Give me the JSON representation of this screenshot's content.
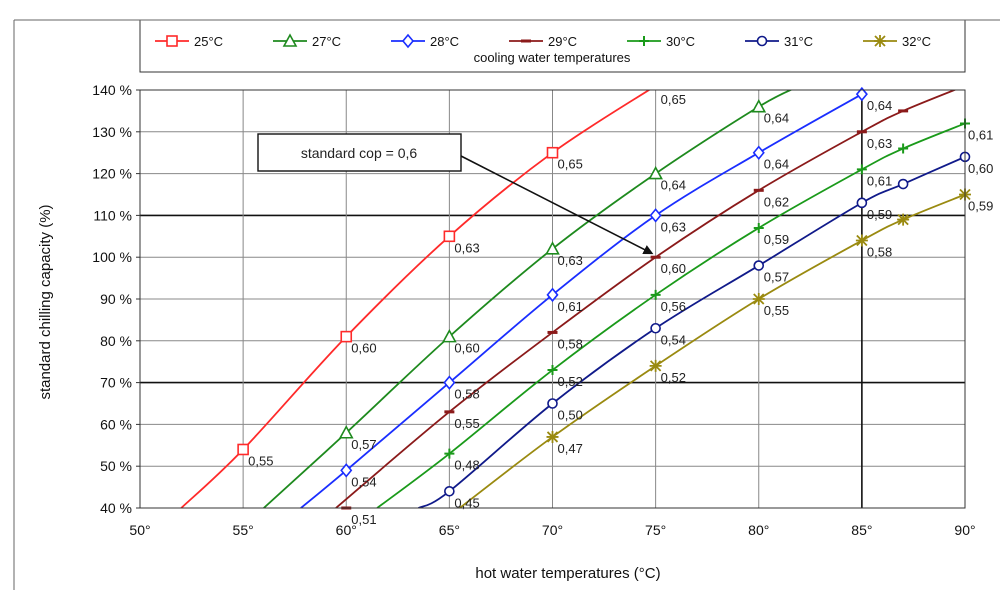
{
  "chart_data": {
    "type": "line",
    "xlabel": "hot water temperatures (°C)",
    "ylabel": "standard chilling capacity (%)",
    "xlim": [
      50,
      90
    ],
    "ylim": [
      40,
      140
    ],
    "x_ticks": [
      {
        "value": 50,
        "label": "50°"
      },
      {
        "value": 55,
        "label": "55°"
      },
      {
        "value": 60,
        "label": "60°"
      },
      {
        "value": 65,
        "label": "65°"
      },
      {
        "value": 70,
        "label": "70°"
      },
      {
        "value": 75,
        "label": "75°"
      },
      {
        "value": 80,
        "label": "80°"
      },
      {
        "value": 85,
        "label": "85°"
      },
      {
        "value": 90,
        "label": "90°"
      }
    ],
    "y_ticks": [
      {
        "value": 40,
        "label": "40 %"
      },
      {
        "value": 50,
        "label": "50 %"
      },
      {
        "value": 60,
        "label": "60 %"
      },
      {
        "value": 70,
        "label": "70 %"
      },
      {
        "value": 80,
        "label": "80 %"
      },
      {
        "value": 90,
        "label": "90 %"
      },
      {
        "value": 100,
        "label": "100 %"
      },
      {
        "value": 110,
        "label": "110 %"
      },
      {
        "value": 120,
        "label": "120 %"
      },
      {
        "value": 130,
        "label": "130 %"
      },
      {
        "value": 140,
        "label": "140 %"
      }
    ],
    "grid": true,
    "bold_gridlines": {
      "x": [
        85
      ],
      "y": [
        70,
        110
      ]
    },
    "legend": {
      "placement": "top",
      "caption": "cooling water temperatures"
    },
    "annotation": {
      "text": "standard cop = 0,6",
      "arrow_to": {
        "x": 75,
        "y": 100
      }
    },
    "series": [
      {
        "name": "25°C",
        "color": "#ff2a2a",
        "marker": "square",
        "curve": [
          [
            52,
            40
          ],
          [
            55,
            54
          ],
          [
            60,
            81
          ],
          [
            65,
            105
          ],
          [
            70,
            125
          ],
          [
            75,
            141
          ]
        ],
        "points": [
          {
            "x": 55,
            "y": 54,
            "cop": "0,55"
          },
          {
            "x": 60,
            "y": 81,
            "cop": "0,60"
          },
          {
            "x": 65,
            "y": 105,
            "cop": "0,63"
          },
          {
            "x": 70,
            "y": 125,
            "cop": "0,65"
          },
          {
            "x": 75,
            "y": 141,
            "cop": "0,65"
          }
        ]
      },
      {
        "name": "27°C",
        "color": "#1e8a1e",
        "marker": "triangle",
        "curve": [
          [
            56,
            40
          ],
          [
            60,
            58
          ],
          [
            65,
            81
          ],
          [
            70,
            102
          ],
          [
            75,
            120
          ],
          [
            80,
            136
          ],
          [
            82,
            141
          ]
        ],
        "points": [
          {
            "x": 60,
            "y": 58,
            "cop": "0,57"
          },
          {
            "x": 65,
            "y": 81,
            "cop": "0,60"
          },
          {
            "x": 70,
            "y": 102,
            "cop": "0,63"
          },
          {
            "x": 75,
            "y": 120,
            "cop": "0,64"
          },
          {
            "x": 80,
            "y": 136,
            "cop": "0,64"
          }
        ]
      },
      {
        "name": "28°C",
        "color": "#1a2eff",
        "marker": "diamond",
        "curve": [
          [
            57.8,
            40
          ],
          [
            60,
            49
          ],
          [
            65,
            70
          ],
          [
            70,
            91
          ],
          [
            75,
            110
          ],
          [
            80,
            125
          ],
          [
            85,
            139
          ]
        ],
        "points": [
          {
            "x": 60,
            "y": 49,
            "cop": "0,54"
          },
          {
            "x": 65,
            "y": 70,
            "cop": "0,58"
          },
          {
            "x": 70,
            "y": 91,
            "cop": "0,61"
          },
          {
            "x": 75,
            "y": 110,
            "cop": "0,63"
          },
          {
            "x": 80,
            "y": 125,
            "cop": "0,64"
          },
          {
            "x": 85,
            "y": 139,
            "cop": "0,64"
          }
        ]
      },
      {
        "name": "29°C",
        "color": "#8b1a1a",
        "marker": "dash",
        "curve": [
          [
            59.5,
            40
          ],
          [
            65,
            63
          ],
          [
            70,
            82
          ],
          [
            75,
            100
          ],
          [
            80,
            116
          ],
          [
            85,
            130
          ],
          [
            87,
            135
          ],
          [
            90,
            141
          ]
        ],
        "points": [
          {
            "x": 60,
            "y": 40,
            "cop": "0,51"
          },
          {
            "x": 65,
            "y": 63,
            "cop": "0,55"
          },
          {
            "x": 70,
            "y": 82,
            "cop": "0,58"
          },
          {
            "x": 75,
            "y": 100,
            "cop": "0,60"
          },
          {
            "x": 80,
            "y": 116,
            "cop": "0,62"
          },
          {
            "x": 85,
            "y": 130,
            "cop": "0,63"
          },
          {
            "x": 87,
            "y": 135,
            "cop": ""
          }
        ]
      },
      {
        "name": "30°C",
        "color": "#1a9a1a",
        "marker": "plus",
        "curve": [
          [
            61.5,
            40
          ],
          [
            65,
            53
          ],
          [
            70,
            73
          ],
          [
            75,
            91
          ],
          [
            80,
            107
          ],
          [
            85,
            121
          ],
          [
            87,
            126
          ],
          [
            90,
            132
          ]
        ],
        "points": [
          {
            "x": 65,
            "y": 53,
            "cop": "0,48"
          },
          {
            "x": 70,
            "y": 73,
            "cop": "0,52"
          },
          {
            "x": 75,
            "y": 91,
            "cop": "0,56"
          },
          {
            "x": 80,
            "y": 107,
            "cop": "0,59"
          },
          {
            "x": 85,
            "y": 121,
            "cop": "0,61"
          },
          {
            "x": 87,
            "y": 126,
            "cop": ""
          },
          {
            "x": 90,
            "y": 132,
            "cop": "0,61"
          }
        ]
      },
      {
        "name": "31°C",
        "color": "#101a8a",
        "marker": "circle",
        "curve": [
          [
            63.5,
            40
          ],
          [
            65,
            44
          ],
          [
            70,
            65
          ],
          [
            75,
            83
          ],
          [
            80,
            98
          ],
          [
            85,
            113
          ],
          [
            87,
            117.5
          ],
          [
            90,
            124
          ]
        ],
        "points": [
          {
            "x": 65,
            "y": 44,
            "cop": "0,45"
          },
          {
            "x": 70,
            "y": 65,
            "cop": "0,50"
          },
          {
            "x": 75,
            "y": 83,
            "cop": "0,54"
          },
          {
            "x": 80,
            "y": 98,
            "cop": "0,57"
          },
          {
            "x": 85,
            "y": 113,
            "cop": "0,59"
          },
          {
            "x": 87,
            "y": 117.5,
            "cop": ""
          },
          {
            "x": 90,
            "y": 124,
            "cop": "0,60"
          }
        ]
      },
      {
        "name": "32°C",
        "color": "#9a8a10",
        "marker": "star",
        "curve": [
          [
            65.5,
            40
          ],
          [
            70,
            57
          ],
          [
            75,
            74
          ],
          [
            80,
            90
          ],
          [
            85,
            104
          ],
          [
            87,
            109
          ],
          [
            90,
            115
          ]
        ],
        "points": [
          {
            "x": 70,
            "y": 57,
            "cop": "0,47"
          },
          {
            "x": 75,
            "y": 74,
            "cop": "0,52"
          },
          {
            "x": 80,
            "y": 90,
            "cop": "0,55"
          },
          {
            "x": 85,
            "y": 104,
            "cop": "0,58"
          },
          {
            "x": 87,
            "y": 109,
            "cop": ""
          },
          {
            "x": 90,
            "y": 115,
            "cop": "0,59"
          }
        ]
      }
    ]
  }
}
